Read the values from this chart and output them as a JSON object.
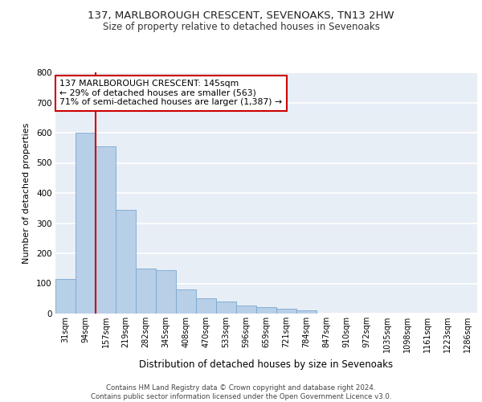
{
  "title1": "137, MARLBOROUGH CRESCENT, SEVENOAKS, TN13 2HW",
  "title2": "Size of property relative to detached houses in Sevenoaks",
  "xlabel": "Distribution of detached houses by size in Sevenoaks",
  "ylabel": "Number of detached properties",
  "categories": [
    "31sqm",
    "94sqm",
    "157sqm",
    "219sqm",
    "282sqm",
    "345sqm",
    "408sqm",
    "470sqm",
    "533sqm",
    "596sqm",
    "659sqm",
    "721sqm",
    "784sqm",
    "847sqm",
    "910sqm",
    "972sqm",
    "1035sqm",
    "1098sqm",
    "1161sqm",
    "1223sqm",
    "1286sqm"
  ],
  "values": [
    115,
    600,
    555,
    345,
    150,
    145,
    80,
    50,
    40,
    28,
    22,
    15,
    10,
    0,
    0,
    0,
    0,
    0,
    0,
    0,
    0
  ],
  "bar_color": "#b8cfe8",
  "bar_edge_color": "#7aa8d0",
  "property_line_x": 1.5,
  "annotation_text": "137 MARLBOROUGH CRESCENT: 145sqm\n← 29% of detached houses are smaller (563)\n71% of semi-detached houses are larger (1,387) →",
  "annotation_box_color": "#ffffff",
  "annotation_box_edge": "#cc0000",
  "vline_color": "#cc0000",
  "ylim": [
    0,
    800
  ],
  "yticks": [
    0,
    100,
    200,
    300,
    400,
    500,
    600,
    700,
    800
  ],
  "bg_color": "#e8eef6",
  "grid_color": "#ffffff",
  "footer": "Contains HM Land Registry data © Crown copyright and database right 2024.\nContains public sector information licensed under the Open Government Licence v3.0."
}
